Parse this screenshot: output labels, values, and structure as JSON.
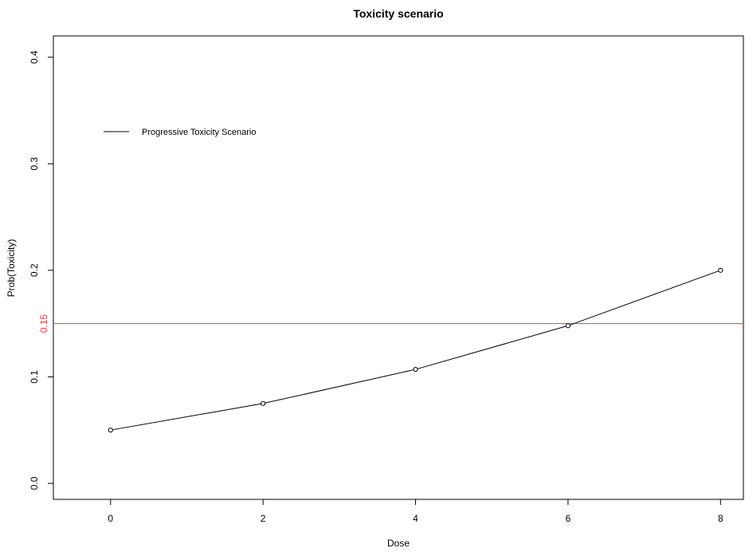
{
  "chart_data": {
    "type": "line",
    "title": "Toxicity scenario",
    "xlabel": "Dose",
    "ylabel": "Prob(Toxicity)",
    "xlim": [
      -0.75,
      8.3
    ],
    "ylim": [
      -0.015,
      0.42
    ],
    "x_ticks": [
      "0",
      "2",
      "4",
      "6",
      "8"
    ],
    "y_ticks": [
      "0.0",
      "0.1",
      "0.2",
      "0.3",
      "0.4"
    ],
    "grid": false,
    "legend_position": "top-left",
    "series": [
      {
        "name": "Progressive Toxicity Scenario",
        "color": "#000000",
        "x": [
          0,
          2,
          4,
          6,
          8
        ],
        "y": [
          0.05,
          0.075,
          0.107,
          0.148,
          0.2
        ]
      }
    ],
    "reference_line": {
      "value": 0.15,
      "label": "0.15",
      "color": "#ff3030"
    }
  }
}
